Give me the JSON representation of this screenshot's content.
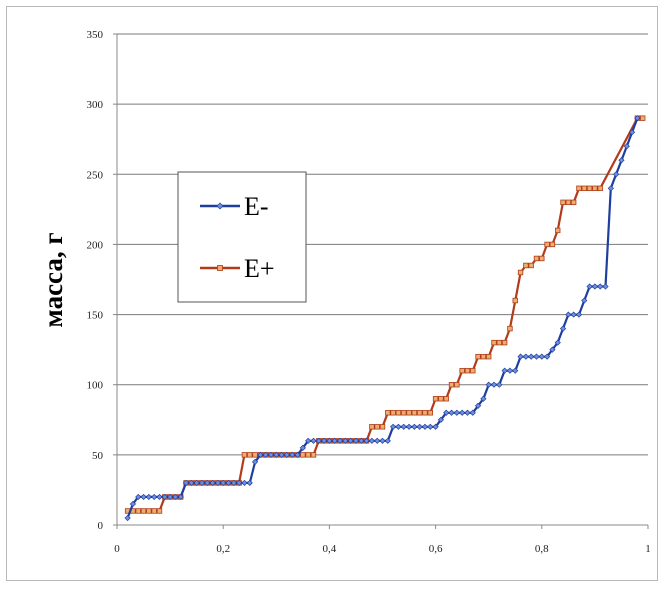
{
  "chart_data": {
    "type": "line",
    "title": "",
    "xlabel": "",
    "ylabel": "масса, г",
    "xlim": [
      0,
      1
    ],
    "ylim": [
      0,
      350
    ],
    "x_ticks": [
      "0",
      "0,2",
      "0,4",
      "0,6",
      "0,8",
      "1"
    ],
    "y_ticks": [
      "0",
      "50",
      "100",
      "150",
      "200",
      "250",
      "300",
      "350"
    ],
    "grid": "horizontal",
    "legend": "left-center",
    "series": [
      {
        "name": "E-",
        "color": "#1f3f9f",
        "points": [
          [
            0.02,
            5
          ],
          [
            0.03,
            15
          ],
          [
            0.04,
            20
          ],
          [
            0.05,
            20
          ],
          [
            0.06,
            20
          ],
          [
            0.07,
            20
          ],
          [
            0.08,
            20
          ],
          [
            0.09,
            20
          ],
          [
            0.1,
            20
          ],
          [
            0.11,
            20
          ],
          [
            0.12,
            20
          ],
          [
            0.13,
            30
          ],
          [
            0.14,
            30
          ],
          [
            0.15,
            30
          ],
          [
            0.16,
            30
          ],
          [
            0.17,
            30
          ],
          [
            0.18,
            30
          ],
          [
            0.19,
            30
          ],
          [
            0.2,
            30
          ],
          [
            0.21,
            30
          ],
          [
            0.22,
            30
          ],
          [
            0.23,
            30
          ],
          [
            0.24,
            30
          ],
          [
            0.25,
            30
          ],
          [
            0.26,
            45
          ],
          [
            0.27,
            50
          ],
          [
            0.28,
            50
          ],
          [
            0.29,
            50
          ],
          [
            0.3,
            50
          ],
          [
            0.31,
            50
          ],
          [
            0.32,
            50
          ],
          [
            0.33,
            50
          ],
          [
            0.34,
            50
          ],
          [
            0.35,
            55
          ],
          [
            0.36,
            60
          ],
          [
            0.37,
            60
          ],
          [
            0.38,
            60
          ],
          [
            0.39,
            60
          ],
          [
            0.4,
            60
          ],
          [
            0.41,
            60
          ],
          [
            0.42,
            60
          ],
          [
            0.43,
            60
          ],
          [
            0.44,
            60
          ],
          [
            0.45,
            60
          ],
          [
            0.46,
            60
          ],
          [
            0.47,
            60
          ],
          [
            0.48,
            60
          ],
          [
            0.49,
            60
          ],
          [
            0.5,
            60
          ],
          [
            0.51,
            60
          ],
          [
            0.52,
            70
          ],
          [
            0.53,
            70
          ],
          [
            0.54,
            70
          ],
          [
            0.55,
            70
          ],
          [
            0.56,
            70
          ],
          [
            0.57,
            70
          ],
          [
            0.58,
            70
          ],
          [
            0.59,
            70
          ],
          [
            0.6,
            70
          ],
          [
            0.61,
            75
          ],
          [
            0.62,
            80
          ],
          [
            0.63,
            80
          ],
          [
            0.64,
            80
          ],
          [
            0.65,
            80
          ],
          [
            0.66,
            80
          ],
          [
            0.67,
            80
          ],
          [
            0.68,
            85
          ],
          [
            0.69,
            90
          ],
          [
            0.7,
            100
          ],
          [
            0.71,
            100
          ],
          [
            0.72,
            100
          ],
          [
            0.73,
            110
          ],
          [
            0.74,
            110
          ],
          [
            0.75,
            110
          ],
          [
            0.76,
            120
          ],
          [
            0.77,
            120
          ],
          [
            0.78,
            120
          ],
          [
            0.79,
            120
          ],
          [
            0.8,
            120
          ],
          [
            0.81,
            120
          ],
          [
            0.82,
            125
          ],
          [
            0.83,
            130
          ],
          [
            0.84,
            140
          ],
          [
            0.85,
            150
          ],
          [
            0.86,
            150
          ],
          [
            0.87,
            150
          ],
          [
            0.88,
            160
          ],
          [
            0.89,
            170
          ],
          [
            0.9,
            170
          ],
          [
            0.91,
            170
          ],
          [
            0.92,
            170
          ],
          [
            0.93,
            240
          ],
          [
            0.94,
            250
          ],
          [
            0.95,
            260
          ],
          [
            0.96,
            270
          ],
          [
            0.97,
            280
          ],
          [
            0.98,
            290
          ]
        ]
      },
      {
        "name": "E+",
        "color": "#b23b1a",
        "points": [
          [
            0.02,
            10
          ],
          [
            0.03,
            10
          ],
          [
            0.04,
            10
          ],
          [
            0.05,
            10
          ],
          [
            0.06,
            10
          ],
          [
            0.07,
            10
          ],
          [
            0.08,
            10
          ],
          [
            0.09,
            20
          ],
          [
            0.1,
            20
          ],
          [
            0.11,
            20
          ],
          [
            0.12,
            20
          ],
          [
            0.13,
            30
          ],
          [
            0.14,
            30
          ],
          [
            0.15,
            30
          ],
          [
            0.16,
            30
          ],
          [
            0.17,
            30
          ],
          [
            0.18,
            30
          ],
          [
            0.19,
            30
          ],
          [
            0.2,
            30
          ],
          [
            0.21,
            30
          ],
          [
            0.22,
            30
          ],
          [
            0.23,
            30
          ],
          [
            0.24,
            50
          ],
          [
            0.25,
            50
          ],
          [
            0.26,
            50
          ],
          [
            0.27,
            50
          ],
          [
            0.28,
            50
          ],
          [
            0.29,
            50
          ],
          [
            0.3,
            50
          ],
          [
            0.31,
            50
          ],
          [
            0.32,
            50
          ],
          [
            0.33,
            50
          ],
          [
            0.34,
            50
          ],
          [
            0.35,
            50
          ],
          [
            0.36,
            50
          ],
          [
            0.37,
            50
          ],
          [
            0.38,
            60
          ],
          [
            0.39,
            60
          ],
          [
            0.4,
            60
          ],
          [
            0.41,
            60
          ],
          [
            0.42,
            60
          ],
          [
            0.43,
            60
          ],
          [
            0.44,
            60
          ],
          [
            0.45,
            60
          ],
          [
            0.46,
            60
          ],
          [
            0.47,
            60
          ],
          [
            0.48,
            70
          ],
          [
            0.49,
            70
          ],
          [
            0.5,
            70
          ],
          [
            0.51,
            80
          ],
          [
            0.52,
            80
          ],
          [
            0.53,
            80
          ],
          [
            0.54,
            80
          ],
          [
            0.55,
            80
          ],
          [
            0.56,
            80
          ],
          [
            0.57,
            80
          ],
          [
            0.58,
            80
          ],
          [
            0.59,
            80
          ],
          [
            0.6,
            90
          ],
          [
            0.61,
            90
          ],
          [
            0.62,
            90
          ],
          [
            0.63,
            100
          ],
          [
            0.64,
            100
          ],
          [
            0.65,
            110
          ],
          [
            0.66,
            110
          ],
          [
            0.67,
            110
          ],
          [
            0.68,
            120
          ],
          [
            0.69,
            120
          ],
          [
            0.7,
            120
          ],
          [
            0.71,
            130
          ],
          [
            0.72,
            130
          ],
          [
            0.73,
            130
          ],
          [
            0.74,
            140
          ],
          [
            0.75,
            160
          ],
          [
            0.76,
            180
          ],
          [
            0.77,
            185
          ],
          [
            0.78,
            185
          ],
          [
            0.79,
            190
          ],
          [
            0.8,
            190
          ],
          [
            0.81,
            200
          ],
          [
            0.82,
            200
          ],
          [
            0.83,
            210
          ],
          [
            0.84,
            230
          ],
          [
            0.85,
            230
          ],
          [
            0.86,
            230
          ],
          [
            0.87,
            240
          ],
          [
            0.88,
            240
          ],
          [
            0.89,
            240
          ],
          [
            0.9,
            240
          ],
          [
            0.91,
            240
          ],
          [
            0.98,
            290
          ],
          [
            0.99,
            290
          ]
        ]
      }
    ]
  }
}
